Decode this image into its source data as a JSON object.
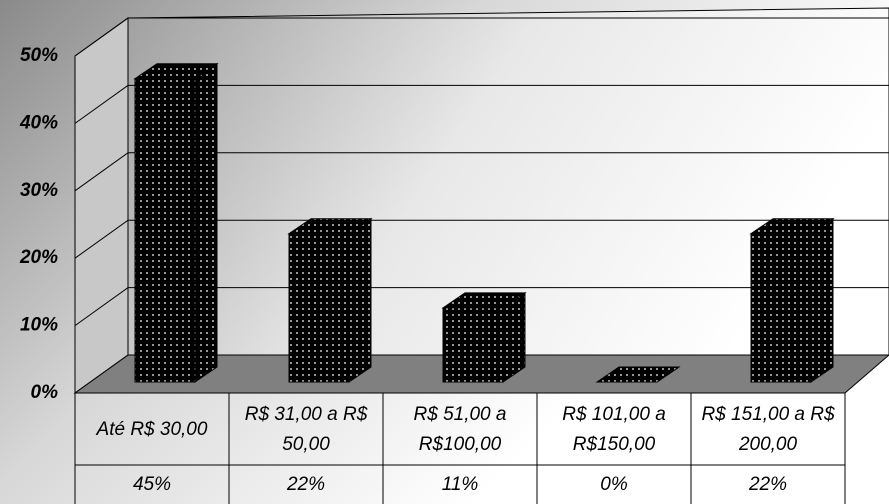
{
  "chart_data": {
    "type": "bar3d",
    "categories": [
      "Até R$ 30,00",
      "R$ 31,00 a R$ 50,00",
      "R$ 51,00 a R$100,00",
      "R$ 101,00 a R$150,00",
      "R$ 151,00 a R$ 200,00"
    ],
    "values": [
      45,
      22,
      11,
      0,
      22
    ],
    "value_labels": [
      "45%",
      "22%",
      "11%",
      "0%",
      "22%"
    ],
    "color": "#000000",
    "ylim": [
      0,
      50
    ],
    "yticks": [
      {
        "value": 0,
        "label": "0%"
      },
      {
        "value": 10,
        "label": "10%"
      },
      {
        "value": 20,
        "label": "20%"
      },
      {
        "value": 30,
        "label": "30%"
      },
      {
        "value": 40,
        "label": "40%"
      },
      {
        "value": 50,
        "label": "50%"
      }
    ],
    "grid": true
  }
}
